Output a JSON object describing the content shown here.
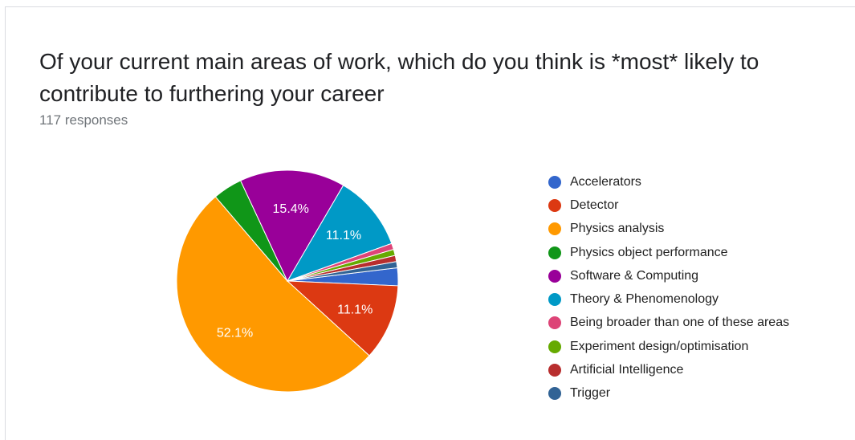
{
  "card": {
    "title": "Of your current main areas of work, which do you think is *most* likely to contribute to furthering your career",
    "subtitle": "117 responses"
  },
  "chart_data": {
    "type": "pie",
    "title": "Of your current main areas of work, which do you think is *most* likely to contribute to furthering your career",
    "total_responses": 117,
    "slices": [
      {
        "label": "Accelerators",
        "value": 2.6,
        "color": "#3366cc",
        "display": ""
      },
      {
        "label": "Detector",
        "value": 11.1,
        "color": "#dc3912",
        "display": "11.1%"
      },
      {
        "label": "Physics analysis",
        "value": 52.1,
        "color": "#ff9900",
        "display": "52.1%"
      },
      {
        "label": "Physics object performance",
        "value": 4.3,
        "color": "#109618",
        "display": ""
      },
      {
        "label": "Software & Computing",
        "value": 15.4,
        "color": "#990099",
        "display": "15.4%"
      },
      {
        "label": "Theory & Phenomenology",
        "value": 11.1,
        "color": "#0099c6",
        "display": "11.1%"
      },
      {
        "label": "Being broader than one of these areas",
        "value": 0.9,
        "color": "#dd4477",
        "display": ""
      },
      {
        "label": "Experiment design/optimisation",
        "value": 0.9,
        "color": "#66aa00",
        "display": ""
      },
      {
        "label": "Artificial Intelligence",
        "value": 0.9,
        "color": "#b82e2e",
        "display": ""
      },
      {
        "label": "Trigger",
        "value": 0.9,
        "color": "#316395",
        "display": ""
      }
    ],
    "legend_position": "right"
  }
}
